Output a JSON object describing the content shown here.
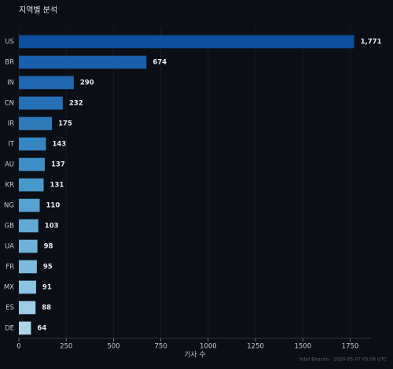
{
  "chart_data": {
    "type": "barh",
    "title": "지역별 분석",
    "xlabel": "기사 수",
    "annotation": "Intel Beacon · 2026-05-07 05:06 UTC",
    "categories": [
      "US",
      "BR",
      "IN",
      "CN",
      "IR",
      "IT",
      "AU",
      "KR",
      "NG",
      "GB",
      "UA",
      "FR",
      "MX",
      "ES",
      "DE"
    ],
    "values": [
      1771,
      674,
      290,
      232,
      175,
      143,
      137,
      131,
      110,
      103,
      98,
      95,
      91,
      88,
      64
    ],
    "value_labels": [
      "1,771",
      "674",
      "290",
      "232",
      "175",
      "143",
      "137",
      "131",
      "110",
      "103",
      "98",
      "95",
      "91",
      "88",
      "64"
    ],
    "colors": [
      "#0d4f9a",
      "#1a5fab",
      "#1f68b0",
      "#2570b5",
      "#2f7ab8",
      "#3585c0",
      "#3d8fc6",
      "#4799cb",
      "#55a2d0",
      "#62a9d4",
      "#6fb1d9",
      "#7cbade",
      "#8bc3e2",
      "#9ccce6",
      "#aed6ea"
    ],
    "xlim": [
      0,
      1860
    ],
    "xticks": [
      0,
      250,
      500,
      750,
      1000,
      1250,
      1500,
      1750
    ],
    "grid": true
  }
}
